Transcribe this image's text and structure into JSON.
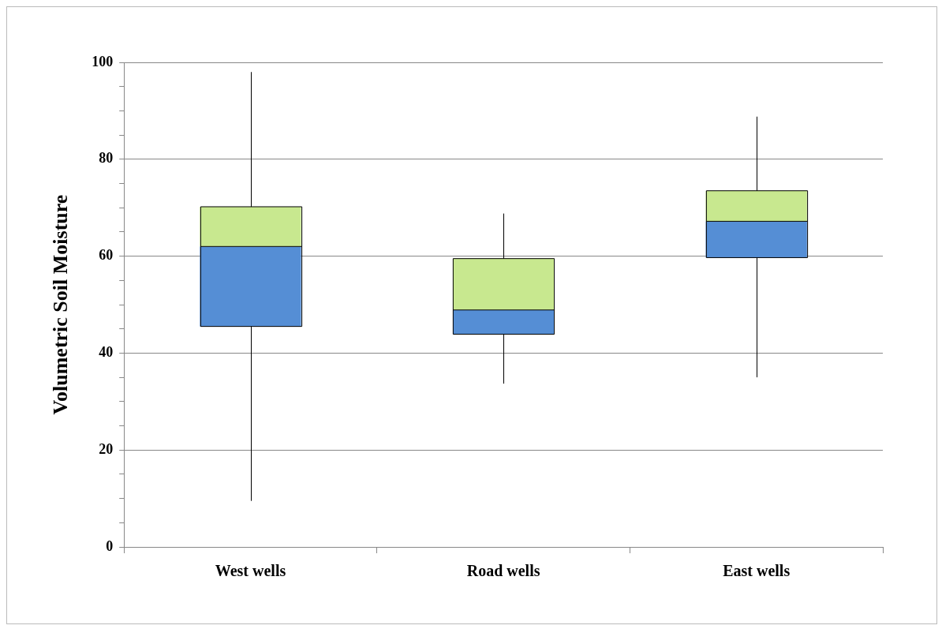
{
  "chart_data": {
    "type": "box",
    "ylabel": "Volumetric Soil Moisture",
    "categories": [
      "West wells",
      "Road wells",
      "East wells"
    ],
    "series": [
      {
        "color": "#c8e88f",
        "colors": [
          "#558ed5",
          "#558ed5",
          "#558ed5"
        ],
        "boxes": [
          {
            "low": 9.5,
            "q1": 45.5,
            "median": 62,
            "q3": 70.2,
            "high": 98
          },
          {
            "low": 33.7,
            "q1": 43.9,
            "median": 48.9,
            "q3": 59.5,
            "high": 68.8
          },
          {
            "low": 35,
            "q1": 59.7,
            "median": 67.2,
            "q3": 73.5,
            "high": 88.8
          }
        ]
      }
    ],
    "ylim": [
      0,
      100
    ],
    "yticks": [
      0,
      {
        "value": 5,
        "label": null
      },
      {
        "value": 10,
        "label": null
      },
      {
        "value": 15,
        "label": null
      },
      20,
      {
        "value": 25,
        "label": null
      },
      {
        "value": 30,
        "label": null
      },
      {
        "value": 35,
        "label": null
      },
      40,
      {
        "value": 45,
        "label": null
      },
      {
        "value": 50,
        "label": null
      },
      {
        "value": 55,
        "label": null
      },
      60,
      {
        "value": 65,
        "label": null
      },
      {
        "value": 70,
        "label": null
      },
      {
        "value": 75,
        "label": null
      },
      80,
      {
        "value": 85,
        "label": null
      },
      {
        "value": 90,
        "label": null
      },
      {
        "value": 95,
        "label": null
      },
      100
    ],
    "grid": "y"
  }
}
